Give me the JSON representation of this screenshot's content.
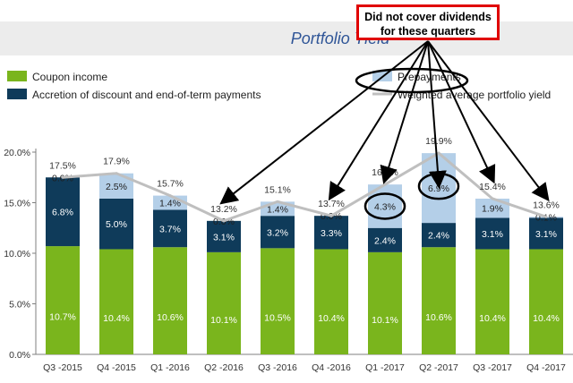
{
  "chart_data": {
    "type": "bar",
    "title": "Portfolio Yield",
    "categories": [
      "Q3 -2015",
      "Q4 -2015",
      "Q1 -2016",
      "Q2 -2016",
      "Q3 -2016",
      "Q4 -2016",
      "Q1 -2017",
      "Q2 -2017",
      "Q3 -2017",
      "Q4 -2017"
    ],
    "series": [
      {
        "name": "Coupon income",
        "color": "#7ab51d",
        "values": [
          10.7,
          10.4,
          10.6,
          10.1,
          10.5,
          10.4,
          10.1,
          10.6,
          10.4,
          10.4
        ],
        "labels": [
          "10.7%",
          "10.4%",
          "10.6%",
          "10.1%",
          "10.5%",
          "10.4%",
          "10.1%",
          "10.6%",
          "10.4%",
          "10.4%"
        ]
      },
      {
        "name": "Accretion of discount and end-of-term payments",
        "color": "#0f3b5a",
        "values": [
          6.8,
          5.0,
          3.7,
          3.1,
          3.2,
          3.3,
          2.4,
          2.4,
          3.1,
          3.1
        ],
        "labels": [
          "6.8%",
          "5.0%",
          "3.7%",
          "3.1%",
          "3.2%",
          "3.3%",
          "2.4%",
          "2.4%",
          "3.1%",
          "3.1%"
        ]
      },
      {
        "name": "Prepayments",
        "color": "#b4cfe8",
        "values": [
          0.0,
          2.5,
          1.4,
          0.0,
          1.4,
          0.0,
          4.3,
          6.9,
          1.9,
          0.1
        ],
        "labels": [
          "0.0%",
          "2.5%",
          "1.4%",
          "0.0%",
          "1.4%",
          "0.0%",
          "4.3%",
          "6.9%",
          "1.9%",
          "0.1%"
        ]
      }
    ],
    "line": {
      "name": "Weighted average portfolio yield",
      "color": "#bfbfbf",
      "values": [
        17.5,
        17.9,
        15.7,
        13.2,
        15.1,
        13.7,
        16.8,
        19.9,
        15.4,
        13.6
      ],
      "labels": [
        "17.5%",
        "17.9%",
        "15.7%",
        "13.2%",
        "15.1%",
        "13.7%",
        "16.8%",
        "19.9%",
        "15.4%",
        "13.6%"
      ]
    },
    "ylim": [
      0,
      20
    ],
    "yticks": [
      "0.0%",
      "5.0%",
      "10.0%",
      "15.0%",
      "20.0%"
    ],
    "grid": false,
    "legend": "top",
    "annotation": {
      "text_line1": "Did not cover dividends",
      "text_line2": "for these quarters",
      "targets": [
        "Q2 -2016",
        "Q4 -2016",
        "Q1 -2017",
        "Q2 -2017",
        "Q3 -2017",
        "Q4 -2017"
      ]
    }
  }
}
